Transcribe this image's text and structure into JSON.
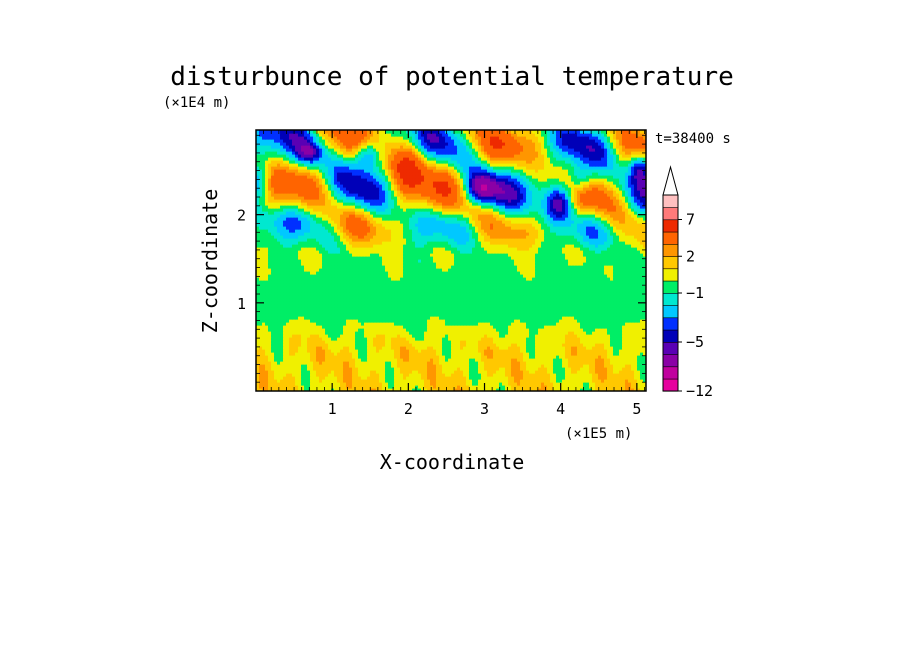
{
  "chart_data": {
    "type": "heatmap",
    "title": "disturbunce of potential temperature",
    "time_label": "t=38400 s",
    "xlabel": "X-coordinate",
    "ylabel": "Z-coordinate",
    "x_unit": "(×1E5 m)",
    "y_unit": "(×1E4 m)",
    "x_ticks": [
      "1",
      "2",
      "3",
      "4",
      "5"
    ],
    "y_ticks": [
      "1",
      "2"
    ],
    "xlim": [
      0,
      5.12
    ],
    "ylim": [
      0,
      2.96
    ],
    "colorbar": {
      "levels": [
        -12,
        -10,
        -8,
        -6,
        -5,
        -4,
        -3,
        -2,
        -1,
        0,
        1,
        2,
        3,
        5,
        7,
        9,
        11
      ],
      "tick_labels": [
        "7",
        "2",
        "−1",
        "−5",
        "−12"
      ],
      "tick_values": [
        7,
        2,
        -1,
        -5,
        -12
      ],
      "colors": [
        "#e6009e",
        "#c0009e",
        "#8a00a6",
        "#5a00b4",
        "#0000b8",
        "#0030ff",
        "#00c8ff",
        "#00e8d0",
        "#00ee66",
        "#f0f000",
        "#ffc800",
        "#ff9600",
        "#ff6400",
        "#ee2a00",
        "#ff7a7a",
        "#ffc0c0"
      ],
      "extend_max": true
    },
    "field_bands": [
      {
        "z_range": [
          0,
          0.45
        ],
        "dominant": "yellow/orange, values 0 to 2"
      },
      {
        "z_range": [
          0.45,
          1.1
        ],
        "dominant": "green/yellow, values -1 to 1"
      },
      {
        "z_range": [
          1.1,
          1.6
        ],
        "dominant": "green, values -1 to 0"
      },
      {
        "z_range": [
          1.6,
          2.96
        ],
        "dominant": "wave pattern, values -5 to 7"
      }
    ],
    "colors": {
      "background": "#ffffff",
      "axis": "#000000"
    }
  }
}
